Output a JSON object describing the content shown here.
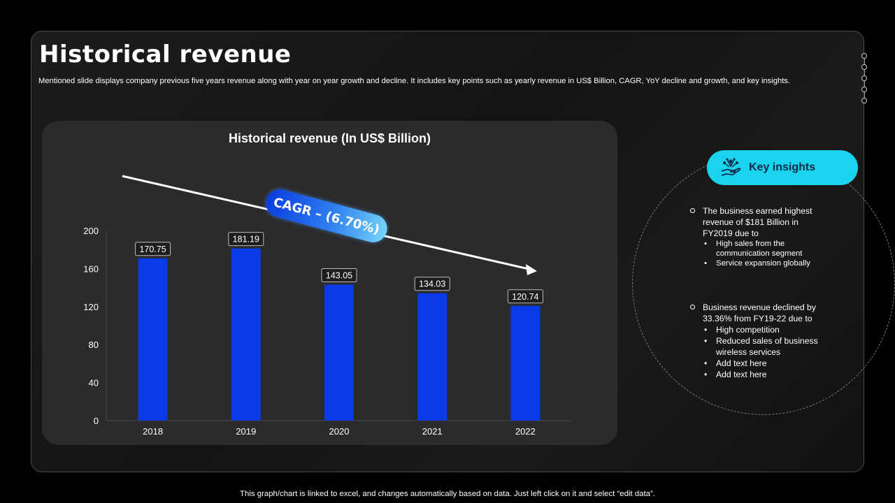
{
  "slide": {
    "title": "Historical revenue",
    "subtitle": "Mentioned slide displays company previous five years revenue along with year on year growth and decline. It includes key points such as yearly revenue in US$ Billion, CAGR, YoY  decline and growth, and key insights.",
    "footer": "This graph/chart is linked to excel,  and changes automatically based on data. Just left click on it and select “edit data”."
  },
  "cagr_label": "CAGR – (6.70%)",
  "key_insights": {
    "title": "Key insights",
    "icon": "hand-network-icon",
    "points": [
      {
        "text": "The business earned highest revenue  of $181 Billion in FY2019 due to",
        "bullets": [
          "High sales from the communication segment",
          "Service expansion globally"
        ]
      },
      {
        "text": "Business revenue  declined by 33.36% from  FY19-22 due to",
        "bullets": [
          "High competition",
          "Reduced  sales of business wireless services",
          "Add text here",
          "Add text here"
        ]
      }
    ]
  },
  "colors": {
    "bar": "#0a3be8",
    "accent": "#1ad3ec",
    "card": "#2b2b2d"
  },
  "chart_data": {
    "type": "bar",
    "title": "Historical revenue (In US$ Billion)",
    "categories": [
      "2018",
      "2019",
      "2020",
      "2021",
      "2022"
    ],
    "values": [
      170.75,
      181.19,
      143.05,
      134.03,
      120.74
    ],
    "value_labels": [
      "170.75",
      "181.19",
      "143.05",
      "134.03",
      "120.74"
    ],
    "yticks": [
      "0",
      "40",
      "80",
      "120",
      "160",
      "200"
    ],
    "ylim": [
      0,
      200
    ],
    "xlabel": "",
    "ylabel": "",
    "grid": false,
    "legend": "none"
  }
}
